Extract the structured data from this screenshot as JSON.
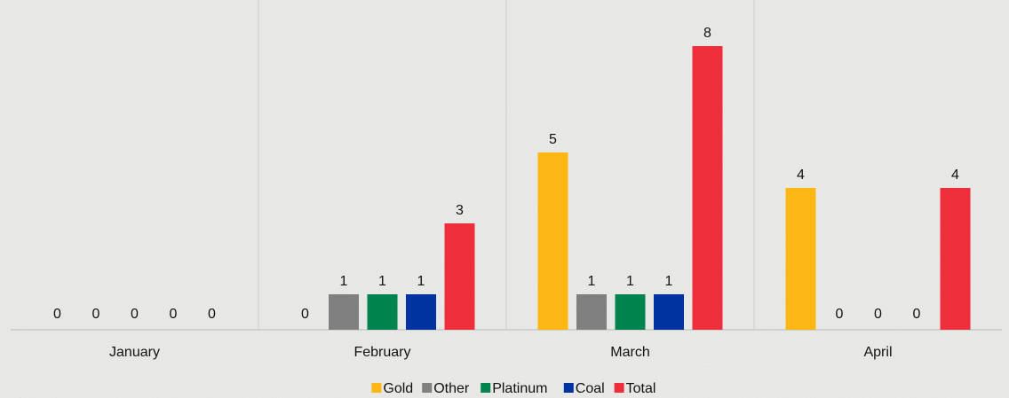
{
  "chart_data": {
    "type": "bar",
    "categories": [
      "January",
      "February",
      "March",
      "April"
    ],
    "series": [
      {
        "name": "Gold",
        "color": "#FDB714",
        "values": [
          0,
          0,
          5,
          4
        ]
      },
      {
        "name": "Other",
        "color": "#808080",
        "values": [
          0,
          1,
          1,
          0
        ]
      },
      {
        "name": "Platinum",
        "color": "#00834D",
        "values": [
          0,
          1,
          1,
          0
        ]
      },
      {
        "name": "Coal",
        "color": "#0033A0",
        "values": [
          0,
          1,
          1,
          0
        ]
      },
      {
        "name": "Total",
        "color": "#EF2E3B",
        "values": [
          0,
          3,
          8,
          4
        ]
      }
    ],
    "ylim": [
      0,
      8
    ],
    "grid": false,
    "legend": "bottom",
    "data_labels": true
  }
}
